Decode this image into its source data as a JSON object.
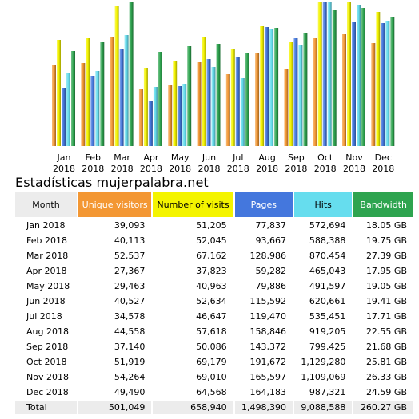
{
  "page_title": "Estadísticas mujerpalabra.net",
  "columns": {
    "month": "Month",
    "unique_visitors": "Unique visitors",
    "number_of_visits": "Number of visits",
    "pages": "Pages",
    "hits": "Hits",
    "bandwidth": "Bandwidth"
  },
  "colors": {
    "unique_visitors": "#f39733",
    "number_of_visits": "#f4f400",
    "pages": "#4477dd",
    "hits": "#66ddee",
    "bandwidth": "#2ea44f"
  },
  "rows": [
    {
      "month": "Jan 2018",
      "unique_visitors": "39,093",
      "number_of_visits": "51,205",
      "pages": "77,837",
      "hits": "572,694",
      "bandwidth": "18.05 GB"
    },
    {
      "month": "Feb 2018",
      "unique_visitors": "40,113",
      "number_of_visits": "52,045",
      "pages": "93,667",
      "hits": "588,388",
      "bandwidth": "19.75 GB"
    },
    {
      "month": "Mar 2018",
      "unique_visitors": "52,537",
      "number_of_visits": "67,162",
      "pages": "128,986",
      "hits": "870,454",
      "bandwidth": "27.39 GB"
    },
    {
      "month": "Apr 2018",
      "unique_visitors": "27,367",
      "number_of_visits": "37,823",
      "pages": "59,282",
      "hits": "465,043",
      "bandwidth": "17.95 GB"
    },
    {
      "month": "May 2018",
      "unique_visitors": "29,463",
      "number_of_visits": "40,963",
      "pages": "79,886",
      "hits": "491,597",
      "bandwidth": "19.05 GB"
    },
    {
      "month": "Jun 2018",
      "unique_visitors": "40,527",
      "number_of_visits": "52,634",
      "pages": "115,592",
      "hits": "620,661",
      "bandwidth": "19.41 GB"
    },
    {
      "month": "Jul 2018",
      "unique_visitors": "34,578",
      "number_of_visits": "46,647",
      "pages": "119,470",
      "hits": "535,451",
      "bandwidth": "17.71 GB"
    },
    {
      "month": "Aug 2018",
      "unique_visitors": "44,558",
      "number_of_visits": "57,618",
      "pages": "158,846",
      "hits": "919,205",
      "bandwidth": "22.55 GB"
    },
    {
      "month": "Sep 2018",
      "unique_visitors": "37,140",
      "number_of_visits": "50,086",
      "pages": "143,372",
      "hits": "799,425",
      "bandwidth": "21.68 GB"
    },
    {
      "month": "Oct 2018",
      "unique_visitors": "51,919",
      "number_of_visits": "69,179",
      "pages": "191,672",
      "hits": "1,129,280",
      "bandwidth": "25.81 GB"
    },
    {
      "month": "Nov 2018",
      "unique_visitors": "54,264",
      "number_of_visits": "69,010",
      "pages": "165,597",
      "hits": "1,109,069",
      "bandwidth": "26.33 GB"
    },
    {
      "month": "Dec 2018",
      "unique_visitors": "49,490",
      "number_of_visits": "64,568",
      "pages": "164,183",
      "hits": "987,321",
      "bandwidth": "24.59 GB"
    }
  ],
  "total": {
    "label": "Total",
    "unique_visitors": "501,049",
    "number_of_visits": "658,940",
    "pages": "1,498,390",
    "hits": "9,088,588",
    "bandwidth": "260.27 GB"
  },
  "chart_data": {
    "type": "bar",
    "categories": [
      "Jan 2018",
      "Feb 2018",
      "Mar 2018",
      "Apr 2018",
      "May 2018",
      "Jun 2018",
      "Jul 2018",
      "Aug 2018",
      "Sep 2018",
      "Oct 2018",
      "Nov 2018",
      "Dec 2018"
    ],
    "category_lines": [
      [
        "Jan",
        "2018"
      ],
      [
        "Feb",
        "2018"
      ],
      [
        "Mar",
        "2018"
      ],
      [
        "Apr",
        "2018"
      ],
      [
        "May",
        "2018"
      ],
      [
        "Jun",
        "2018"
      ],
      [
        "Jul",
        "2018"
      ],
      [
        "Aug",
        "2018"
      ],
      [
        "Sep",
        "2018"
      ],
      [
        "Oct",
        "2018"
      ],
      [
        "Nov",
        "2018"
      ],
      [
        "Dec",
        "2018"
      ]
    ],
    "series": [
      {
        "key": "unique_visitors",
        "values": [
          39093,
          40113,
          52537,
          27367,
          29463,
          40527,
          34578,
          44558,
          37140,
          51919,
          54264,
          49490
        ]
      },
      {
        "key": "number_of_visits",
        "values": [
          51205,
          52045,
          67162,
          37823,
          40963,
          52634,
          46647,
          57618,
          50086,
          69179,
          69010,
          64568
        ]
      },
      {
        "key": "pages",
        "values": [
          77837,
          93667,
          128986,
          59282,
          79886,
          115592,
          119470,
          158846,
          143372,
          191672,
          165597,
          164183
        ]
      },
      {
        "key": "hits",
        "values": [
          572694,
          588388,
          870454,
          465043,
          491597,
          620661,
          535451,
          919205,
          799425,
          1129280,
          1109069,
          987321
        ]
      },
      {
        "key": "bandwidth",
        "values": [
          18.05,
          19.75,
          27.39,
          17.95,
          19.05,
          19.41,
          17.71,
          22.55,
          21.68,
          25.81,
          26.33,
          24.59
        ]
      }
    ],
    "scale_groups": [
      [
        "unique_visitors",
        "number_of_visits"
      ],
      [
        "pages"
      ],
      [
        "hits"
      ],
      [
        "bandwidth"
      ]
    ],
    "xlabel": "",
    "ylabel": "",
    "grid": false,
    "legend": "none"
  }
}
